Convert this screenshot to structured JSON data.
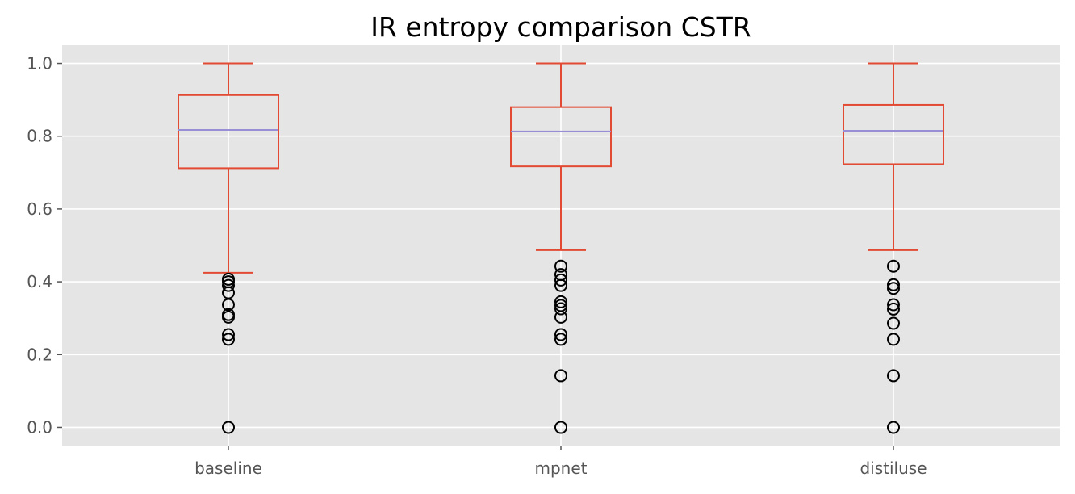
{
  "chart_data": {
    "type": "box",
    "title": "IR entropy comparison CSTR",
    "xlabel": "",
    "ylabel": "",
    "ylim": [
      -0.05,
      1.05
    ],
    "yticks": [
      0.0,
      0.2,
      0.4,
      0.6,
      0.8,
      1.0
    ],
    "ytick_labels": [
      "0.0",
      "0.2",
      "0.4",
      "0.6",
      "0.8",
      "1.0"
    ],
    "grid": true,
    "categories": [
      "baseline",
      "mpnet",
      "distiluse"
    ],
    "boxes": [
      {
        "category": "baseline",
        "whisker_low": 0.425,
        "q1": 0.712,
        "median": 0.817,
        "q3": 0.913,
        "whisker_high": 1.0,
        "outliers": [
          0.407,
          0.4,
          0.39,
          0.37,
          0.337,
          0.31,
          0.303,
          0.255,
          0.242,
          0.0
        ]
      },
      {
        "category": "mpnet",
        "whisker_low": 0.487,
        "q1": 0.717,
        "median": 0.813,
        "q3": 0.88,
        "whisker_high": 1.0,
        "outliers": [
          0.443,
          0.42,
          0.405,
          0.39,
          0.345,
          0.335,
          0.326,
          0.303,
          0.255,
          0.242,
          0.142,
          0.0
        ]
      },
      {
        "category": "distiluse",
        "whisker_low": 0.487,
        "q1": 0.723,
        "median": 0.815,
        "q3": 0.886,
        "whisker_high": 1.0,
        "outliers": [
          0.443,
          0.392,
          0.382,
          0.337,
          0.325,
          0.286,
          0.242,
          0.142,
          0.0
        ]
      }
    ],
    "colors": {
      "box": "#E24A33",
      "median": "#8EBA42",
      "median_line": "#988ED5",
      "outlier": "#000000",
      "plot_bg": "#E5E5E5",
      "grid": "#FFFFFF",
      "tick_text": "#555555"
    }
  }
}
